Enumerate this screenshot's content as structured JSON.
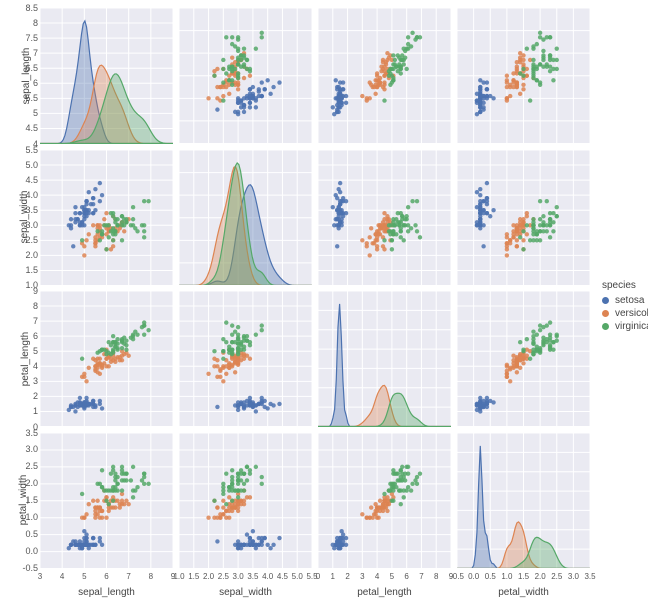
{
  "dims": [
    "sepal_length",
    "sepal_width",
    "petal_length",
    "petal_width"
  ],
  "dim_labels": {
    "sepal_length": "sepal_length",
    "sepal_width": "sepal_width",
    "petal_length": "petal_length",
    "petal_width": "petal_width"
  },
  "ranges": {
    "sepal_length": {
      "min": 3,
      "max": 9,
      "ticks": [
        3,
        4,
        5,
        6,
        7,
        8,
        9
      ],
      "kde_ymax": 8.5,
      "kde_yticks": [
        4.0,
        4.5,
        5.0,
        5.5,
        6.0,
        6.5,
        7.0,
        7.5,
        8.0,
        8.5
      ]
    },
    "sepal_width": {
      "min": 1.0,
      "max": 5.5,
      "ticks": [
        1.0,
        1.5,
        2.0,
        2.5,
        3.0,
        3.5,
        4.0,
        4.5,
        5.0,
        5.5
      ],
      "kde_ymax": 4.5,
      "kde_yticks": [
        1.5,
        2.0,
        2.5,
        3.0,
        3.5,
        4.0,
        4.5
      ]
    },
    "petal_length": {
      "min": 0,
      "max": 9,
      "ticks": [
        0,
        1,
        2,
        3,
        4,
        5,
        6,
        7,
        8,
        9
      ],
      "kde_ymax": 8,
      "kde_yticks": [
        1,
        2,
        3,
        4,
        5,
        6,
        7,
        8
      ]
    },
    "petal_width": {
      "min": -0.5,
      "max": 3.5,
      "ticks": [
        -0.5,
        0.0,
        0.5,
        1.0,
        1.5,
        2.0,
        2.5,
        3.0,
        3.5
      ],
      "kde_ymax": 3.0,
      "kde_yticks": [
        -0.5,
        0.0,
        0.5,
        1.0,
        1.5,
        2.0,
        2.5,
        3.0
      ]
    }
  },
  "style": {
    "panel_bg": "#eaeaf2",
    "grid_color": "#ffffff",
    "grid_width": 1,
    "marker_radius": 2.2,
    "marker_opacity": 0.85,
    "kde_fill_opacity": 0.35,
    "kde_stroke_width": 1.2,
    "tick_fontsize": 9,
    "label_fontsize": 10
  },
  "species": {
    "setosa": {
      "color": "#4c72b0"
    },
    "versicolor": {
      "color": "#dd8452"
    },
    "virginica": {
      "color": "#55a868"
    }
  },
  "legend": {
    "title": "species",
    "items": [
      "setosa",
      "versicolor",
      "virginica"
    ]
  },
  "data": {
    "setosa": {
      "sepal_length": [
        5.1,
        4.9,
        4.7,
        4.6,
        5.0,
        5.4,
        4.6,
        5.0,
        4.4,
        4.9,
        5.4,
        4.8,
        4.8,
        4.3,
        5.8,
        5.7,
        5.4,
        5.1,
        5.7,
        5.1,
        5.4,
        5.1,
        4.6,
        5.1,
        4.8,
        5.0,
        5.0,
        5.2,
        5.2,
        4.7,
        4.8,
        5.4,
        5.2,
        5.5,
        4.9,
        5.0,
        5.5,
        4.9,
        4.4,
        5.1,
        5.0,
        4.5,
        4.4,
        5.0,
        5.1,
        4.8,
        5.1,
        4.6,
        5.3,
        5.0
      ],
      "sepal_width": [
        3.5,
        3.0,
        3.2,
        3.1,
        3.6,
        3.9,
        3.4,
        3.4,
        2.9,
        3.1,
        3.7,
        3.4,
        3.0,
        3.0,
        4.0,
        4.4,
        3.9,
        3.5,
        3.8,
        3.8,
        3.4,
        3.7,
        3.6,
        3.3,
        3.4,
        3.0,
        3.4,
        3.5,
        3.4,
        3.2,
        3.1,
        3.4,
        4.1,
        4.2,
        3.1,
        3.2,
        3.5,
        3.6,
        3.0,
        3.4,
        3.5,
        2.3,
        3.2,
        3.5,
        3.8,
        3.0,
        3.8,
        3.2,
        3.7,
        3.3
      ],
      "petal_length": [
        1.4,
        1.4,
        1.3,
        1.5,
        1.4,
        1.7,
        1.4,
        1.5,
        1.4,
        1.5,
        1.5,
        1.6,
        1.4,
        1.1,
        1.2,
        1.5,
        1.3,
        1.4,
        1.7,
        1.5,
        1.7,
        1.5,
        1.0,
        1.7,
        1.9,
        1.6,
        1.6,
        1.5,
        1.4,
        1.6,
        1.6,
        1.5,
        1.5,
        1.4,
        1.5,
        1.2,
        1.3,
        1.4,
        1.3,
        1.5,
        1.3,
        1.3,
        1.3,
        1.6,
        1.9,
        1.4,
        1.6,
        1.4,
        1.5,
        1.4
      ],
      "petal_width": [
        0.2,
        0.2,
        0.2,
        0.2,
        0.2,
        0.4,
        0.3,
        0.2,
        0.2,
        0.1,
        0.2,
        0.2,
        0.1,
        0.1,
        0.2,
        0.4,
        0.4,
        0.3,
        0.3,
        0.3,
        0.2,
        0.4,
        0.2,
        0.5,
        0.2,
        0.2,
        0.4,
        0.2,
        0.2,
        0.2,
        0.2,
        0.4,
        0.1,
        0.2,
        0.2,
        0.2,
        0.2,
        0.1,
        0.2,
        0.2,
        0.3,
        0.3,
        0.2,
        0.6,
        0.4,
        0.3,
        0.2,
        0.2,
        0.2,
        0.2
      ]
    },
    "versicolor": {
      "sepal_length": [
        7.0,
        6.4,
        6.9,
        5.5,
        6.5,
        5.7,
        6.3,
        4.9,
        6.6,
        5.2,
        5.0,
        5.9,
        6.0,
        6.1,
        5.6,
        6.7,
        5.6,
        5.8,
        6.2,
        5.6,
        5.9,
        6.1,
        6.3,
        6.1,
        6.4,
        6.6,
        6.8,
        6.7,
        6.0,
        5.7,
        5.5,
        5.5,
        5.8,
        6.0,
        5.4,
        6.0,
        6.7,
        6.3,
        5.6,
        5.5,
        5.5,
        6.1,
        5.8,
        5.0,
        5.6,
        5.7,
        5.7,
        6.2,
        5.1,
        5.7
      ],
      "sepal_width": [
        3.2,
        3.2,
        3.1,
        2.3,
        2.8,
        2.8,
        3.3,
        2.4,
        2.9,
        2.7,
        2.0,
        3.0,
        2.2,
        2.9,
        2.9,
        3.1,
        3.0,
        2.7,
        2.2,
        2.5,
        3.2,
        2.8,
        2.5,
        2.8,
        2.9,
        3.0,
        2.8,
        3.0,
        2.9,
        2.6,
        2.4,
        2.4,
        2.7,
        2.7,
        3.0,
        3.4,
        3.1,
        2.3,
        3.0,
        2.5,
        2.6,
        3.0,
        2.6,
        2.3,
        2.7,
        3.0,
        2.9,
        2.9,
        2.5,
        2.8
      ],
      "petal_length": [
        4.7,
        4.5,
        4.9,
        4.0,
        4.6,
        4.5,
        4.7,
        3.3,
        4.6,
        3.9,
        3.5,
        4.2,
        4.0,
        4.7,
        3.6,
        4.4,
        4.5,
        4.1,
        4.5,
        3.9,
        4.8,
        4.0,
        4.9,
        4.7,
        4.3,
        4.4,
        4.8,
        5.0,
        4.5,
        3.5,
        3.8,
        3.7,
        3.9,
        5.1,
        4.5,
        4.5,
        4.7,
        4.4,
        4.1,
        4.0,
        4.4,
        4.6,
        4.0,
        3.3,
        4.2,
        4.2,
        4.2,
        4.3,
        3.0,
        4.1
      ],
      "petal_width": [
        1.4,
        1.5,
        1.5,
        1.3,
        1.5,
        1.3,
        1.6,
        1.0,
        1.3,
        1.4,
        1.0,
        1.5,
        1.0,
        1.4,
        1.3,
        1.4,
        1.5,
        1.0,
        1.5,
        1.1,
        1.8,
        1.3,
        1.5,
        1.2,
        1.3,
        1.4,
        1.4,
        1.7,
        1.5,
        1.0,
        1.1,
        1.0,
        1.2,
        1.6,
        1.5,
        1.6,
        1.5,
        1.3,
        1.3,
        1.3,
        1.2,
        1.4,
        1.2,
        1.0,
        1.3,
        1.2,
        1.3,
        1.3,
        1.1,
        1.3
      ]
    },
    "virginica": {
      "sepal_length": [
        6.3,
        5.8,
        7.1,
        6.3,
        6.5,
        7.6,
        4.9,
        7.3,
        6.7,
        7.2,
        6.5,
        6.4,
        6.8,
        5.7,
        5.8,
        6.4,
        6.5,
        7.7,
        7.7,
        6.0,
        6.9,
        5.6,
        7.7,
        6.3,
        6.7,
        7.2,
        6.2,
        6.1,
        6.4,
        7.2,
        7.4,
        7.9,
        6.4,
        6.3,
        6.1,
        7.7,
        6.3,
        6.4,
        6.0,
        6.9,
        6.7,
        6.9,
        5.8,
        6.8,
        6.7,
        6.7,
        6.3,
        6.5,
        6.2,
        5.9
      ],
      "sepal_width": [
        3.3,
        2.7,
        3.0,
        2.9,
        3.0,
        3.0,
        2.5,
        2.9,
        2.5,
        3.6,
        3.2,
        2.7,
        3.0,
        2.5,
        2.8,
        3.2,
        3.0,
        3.8,
        2.6,
        2.2,
        3.2,
        2.8,
        2.8,
        2.7,
        3.3,
        3.2,
        2.8,
        3.0,
        2.8,
        3.0,
        2.8,
        3.8,
        2.8,
        2.8,
        2.6,
        3.0,
        3.4,
        3.1,
        3.0,
        3.1,
        3.1,
        3.1,
        2.7,
        3.2,
        3.3,
        3.0,
        2.5,
        3.0,
        3.4,
        3.0
      ],
      "petal_length": [
        6.0,
        5.1,
        5.9,
        5.6,
        5.8,
        6.6,
        4.5,
        6.3,
        5.8,
        6.1,
        5.1,
        5.3,
        5.5,
        5.0,
        5.1,
        5.3,
        5.5,
        6.7,
        6.9,
        5.0,
        5.7,
        4.9,
        6.7,
        4.9,
        5.7,
        6.0,
        4.8,
        4.9,
        5.6,
        5.8,
        6.1,
        6.4,
        5.6,
        5.1,
        5.6,
        6.1,
        5.6,
        5.5,
        4.8,
        5.4,
        5.6,
        5.1,
        5.1,
        5.9,
        5.7,
        5.2,
        5.0,
        5.2,
        5.4,
        5.1
      ],
      "petal_width": [
        2.5,
        1.9,
        2.1,
        1.8,
        2.2,
        2.1,
        1.7,
        1.8,
        1.8,
        2.5,
        2.0,
        1.9,
        2.1,
        2.0,
        2.4,
        2.3,
        1.8,
        2.2,
        2.3,
        1.5,
        2.3,
        2.0,
        2.0,
        1.8,
        2.1,
        1.8,
        1.8,
        1.8,
        2.1,
        1.6,
        1.9,
        2.0,
        2.2,
        1.5,
        1.4,
        2.3,
        2.4,
        1.8,
        1.8,
        2.1,
        2.4,
        2.3,
        1.9,
        2.3,
        2.5,
        2.3,
        1.9,
        2.0,
        2.3,
        1.8
      ]
    }
  }
}
